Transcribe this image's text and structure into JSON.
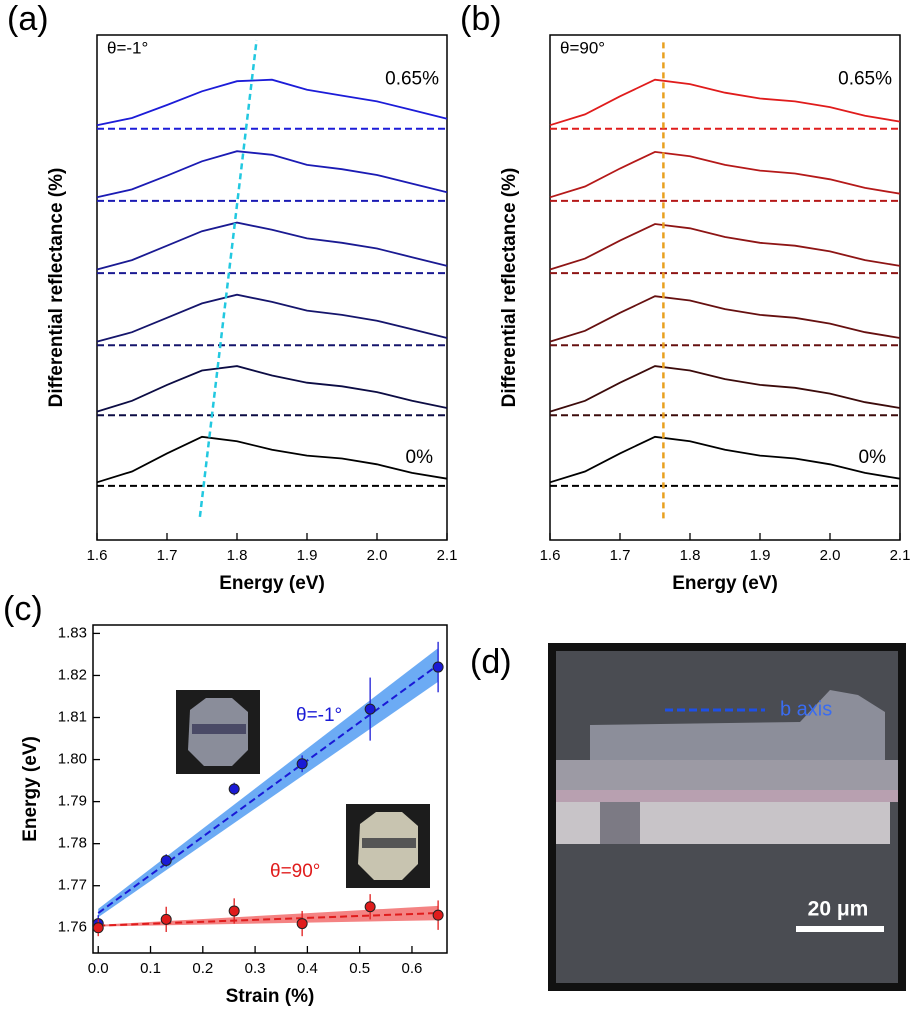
{
  "chart_data": [
    {
      "type": "spectra",
      "panel_label": "(a)",
      "x_label": "Energy (eV)",
      "y_label": "Differential reflectance (%)",
      "theta_label": "θ=-1°",
      "annotations": [
        "0.65%",
        "0%"
      ],
      "xlim": [
        1.6,
        2.1
      ],
      "ylim": [
        0,
        7
      ],
      "xticks": [
        1.6,
        1.7,
        1.8,
        1.9,
        {
          "value": 2.0,
          "label": "2.0"
        },
        2.1
      ],
      "x": [
        1.6,
        1.65,
        1.7,
        1.75,
        1.8,
        1.85,
        1.9,
        1.95,
        2.0,
        2.05,
        2.1
      ],
      "series": [
        {
          "color": "#000000",
          "baseline": 0.75,
          "values": [
            0.8,
            0.95,
            1.2,
            1.43,
            1.37,
            1.25,
            1.17,
            1.13,
            1.05,
            0.93,
            0.85
          ]
        },
        {
          "color": "#0c0c44",
          "baseline": 1.73,
          "values": [
            1.78,
            1.93,
            2.15,
            2.35,
            2.41,
            2.28,
            2.18,
            2.13,
            2.05,
            1.93,
            1.83
          ]
        },
        {
          "color": "#15156c",
          "baseline": 2.7,
          "values": [
            2.75,
            2.88,
            3.08,
            3.28,
            3.4,
            3.3,
            3.18,
            3.12,
            3.04,
            2.92,
            2.8
          ]
        },
        {
          "color": "#1a1a92",
          "baseline": 3.7,
          "values": [
            3.75,
            3.88,
            4.08,
            4.28,
            4.4,
            4.3,
            4.18,
            4.12,
            4.04,
            3.92,
            3.8
          ]
        },
        {
          "color": "#1b1bb4",
          "baseline": 4.7,
          "values": [
            4.75,
            4.86,
            5.05,
            5.25,
            5.39,
            5.34,
            5.2,
            5.14,
            5.06,
            4.94,
            4.82
          ]
        },
        {
          "color": "#1c1cd8",
          "baseline": 5.7,
          "values": [
            5.75,
            5.85,
            6.03,
            6.22,
            6.36,
            6.38,
            6.24,
            6.16,
            6.08,
            5.96,
            5.84
          ]
        }
      ],
      "trend": {
        "color": "#22c8e0",
        "x": [
          1.747,
          1.828
        ],
        "y": [
          0.32,
          6.93
        ]
      }
    },
    {
      "type": "spectra",
      "panel_label": "(b)",
      "x_label": "Energy (eV)",
      "y_label": "Differential reflectance (%)",
      "theta_label": "θ=90°",
      "annotations": [
        "0.65%",
        "0%"
      ],
      "xlim": [
        1.6,
        2.1
      ],
      "ylim": [
        0,
        7
      ],
      "xticks": [
        1.6,
        1.7,
        1.8,
        1.9,
        {
          "value": 2.0,
          "label": "2.0"
        },
        2.1
      ],
      "x": [
        1.6,
        1.65,
        1.7,
        1.75,
        1.8,
        1.85,
        1.9,
        1.95,
        2.0,
        2.05,
        2.1
      ],
      "series": [
        {
          "color": "#000000",
          "baseline": 0.75,
          "values": [
            0.8,
            0.95,
            1.2,
            1.43,
            1.37,
            1.25,
            1.17,
            1.13,
            1.05,
            0.93,
            0.85
          ]
        },
        {
          "color": "#3c0b0b",
          "baseline": 1.73,
          "values": [
            1.78,
            1.93,
            2.18,
            2.41,
            2.35,
            2.23,
            2.15,
            2.11,
            2.03,
            1.91,
            1.83
          ]
        },
        {
          "color": "#661010",
          "baseline": 2.7,
          "values": [
            2.75,
            2.9,
            3.15,
            3.38,
            3.32,
            3.2,
            3.12,
            3.08,
            3.0,
            2.88,
            2.8
          ]
        },
        {
          "color": "#8e1515",
          "baseline": 3.7,
          "values": [
            3.75,
            3.9,
            4.15,
            4.38,
            4.32,
            4.2,
            4.12,
            4.08,
            4.0,
            3.88,
            3.8
          ]
        },
        {
          "color": "#b51919",
          "baseline": 4.7,
          "values": [
            4.75,
            4.9,
            5.15,
            5.38,
            5.32,
            5.2,
            5.12,
            5.08,
            5.0,
            4.88,
            4.8
          ]
        },
        {
          "color": "#e01c1c",
          "baseline": 5.7,
          "values": [
            5.75,
            5.9,
            6.15,
            6.38,
            6.32,
            6.2,
            6.12,
            6.08,
            6.0,
            5.88,
            5.8
          ]
        }
      ],
      "trend": {
        "color": "#e8a020",
        "x": [
          1.762,
          1.762
        ],
        "y": [
          0.3,
          6.93
        ]
      }
    },
    {
      "type": "scatter",
      "panel_label": "(c)",
      "x_label": "Strain (%)",
      "y_label": "Energy (eV)",
      "xlim": [
        -0.01,
        0.667
      ],
      "ylim": [
        1.754,
        1.832
      ],
      "xticks": [
        {
          "value": 0,
          "label": "0.0"
        },
        0.1,
        0.2,
        0.3,
        0.4,
        0.5,
        0.6
      ],
      "yticks": [
        1.76,
        1.77,
        1.78,
        1.79,
        {
          "value": 1.8,
          "label": "1.80"
        },
        1.81,
        1.82,
        1.83
      ],
      "x": [
        0,
        0.13,
        0.26,
        0.39,
        0.52,
        0.65
      ],
      "series": [
        {
          "name": "θ=-1°",
          "color": "#1a1ad6",
          "band_color": "#3b8ff0",
          "values": [
            1.761,
            1.776,
            1.793,
            1.799,
            1.812,
            1.822
          ],
          "errors": [
            0.002,
            0.0015,
            0.0015,
            0.002,
            0.0075,
            0.006
          ],
          "fit": {
            "x": [
              0,
              0.65
            ],
            "y": [
              1.7635,
              1.8225
            ],
            "band_lower": [
              1.7625,
              1.8185
            ],
            "band_upper": [
              1.7645,
              1.8265
            ]
          }
        },
        {
          "name": "θ=90°",
          "color": "#e01c1c",
          "band_color": "#f05a5a",
          "values": [
            1.76,
            1.762,
            1.764,
            1.761,
            1.765,
            1.763
          ],
          "errors": [
            0.002,
            0.003,
            0.003,
            0.003,
            0.003,
            0.0035
          ],
          "fit": {
            "x": [
              0,
              0.65
            ],
            "y": [
              1.7605,
              1.7635
            ],
            "band_lower": [
              1.7603,
              1.7618
            ],
            "band_upper": [
              1.7607,
              1.7652
            ]
          }
        }
      ]
    },
    {
      "type": "image",
      "panel_label": "(d)",
      "axis_label": "b axis",
      "scale_bar": "20 μm"
    }
  ]
}
